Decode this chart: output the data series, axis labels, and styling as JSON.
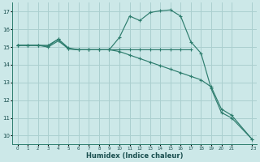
{
  "xlabel": "Humidex (Indice chaleur)",
  "bg_color": "#cce8e8",
  "grid_color": "#aacfcf",
  "line_color": "#2e7d6e",
  "xlim": [
    -0.5,
    23.5
  ],
  "ylim": [
    9.5,
    17.5
  ],
  "yticks": [
    10,
    11,
    12,
    13,
    14,
    15,
    16,
    17
  ],
  "xticks": [
    0,
    1,
    2,
    3,
    4,
    5,
    6,
    7,
    8,
    9,
    10,
    11,
    12,
    13,
    14,
    15,
    16,
    17,
    18,
    19,
    20,
    21,
    23
  ],
  "xtick_labels": [
    "0",
    "1",
    "2",
    "3",
    "4",
    "5",
    "6",
    "7",
    "8",
    "9",
    "10",
    "11",
    "12",
    "13",
    "14",
    "15",
    "16",
    "17",
    "18",
    "19",
    "20",
    "21",
    "  23"
  ],
  "line1_x": [
    0,
    1,
    2,
    3,
    4,
    5,
    6,
    7,
    8,
    9,
    10,
    11,
    12,
    13,
    14,
    15,
    16,
    17,
    18,
    19,
    20,
    21,
    23
  ],
  "line1_y": [
    15.1,
    15.1,
    15.1,
    15.1,
    15.45,
    14.9,
    14.85,
    14.85,
    14.85,
    14.85,
    15.55,
    16.75,
    16.5,
    16.95,
    17.05,
    17.1,
    16.75,
    15.3,
    14.65,
    12.65,
    11.3,
    11.0,
    9.8
  ],
  "line2_x": [
    0,
    1,
    2,
    3,
    4,
    5,
    6,
    7,
    8,
    9,
    10,
    11,
    12,
    13,
    14,
    15,
    16,
    17,
    18,
    19,
    20,
    21,
    23
  ],
  "line2_y": [
    15.1,
    15.1,
    15.1,
    15.05,
    15.45,
    14.95,
    14.85,
    14.85,
    14.85,
    14.85,
    14.75,
    14.55,
    14.35,
    14.15,
    13.95,
    13.75,
    13.55,
    13.35,
    13.15,
    12.75,
    11.5,
    11.15,
    9.8
  ],
  "line3_x": [
    0,
    1,
    2,
    3,
    4,
    5,
    6,
    7,
    8,
    9,
    10,
    11,
    12,
    13,
    14,
    15,
    16,
    17
  ],
  "line3_y": [
    15.1,
    15.1,
    15.1,
    15.0,
    15.35,
    14.9,
    14.85,
    14.85,
    14.85,
    14.85,
    14.85,
    14.85,
    14.85,
    14.85,
    14.85,
    14.85,
    14.85,
    14.85
  ]
}
